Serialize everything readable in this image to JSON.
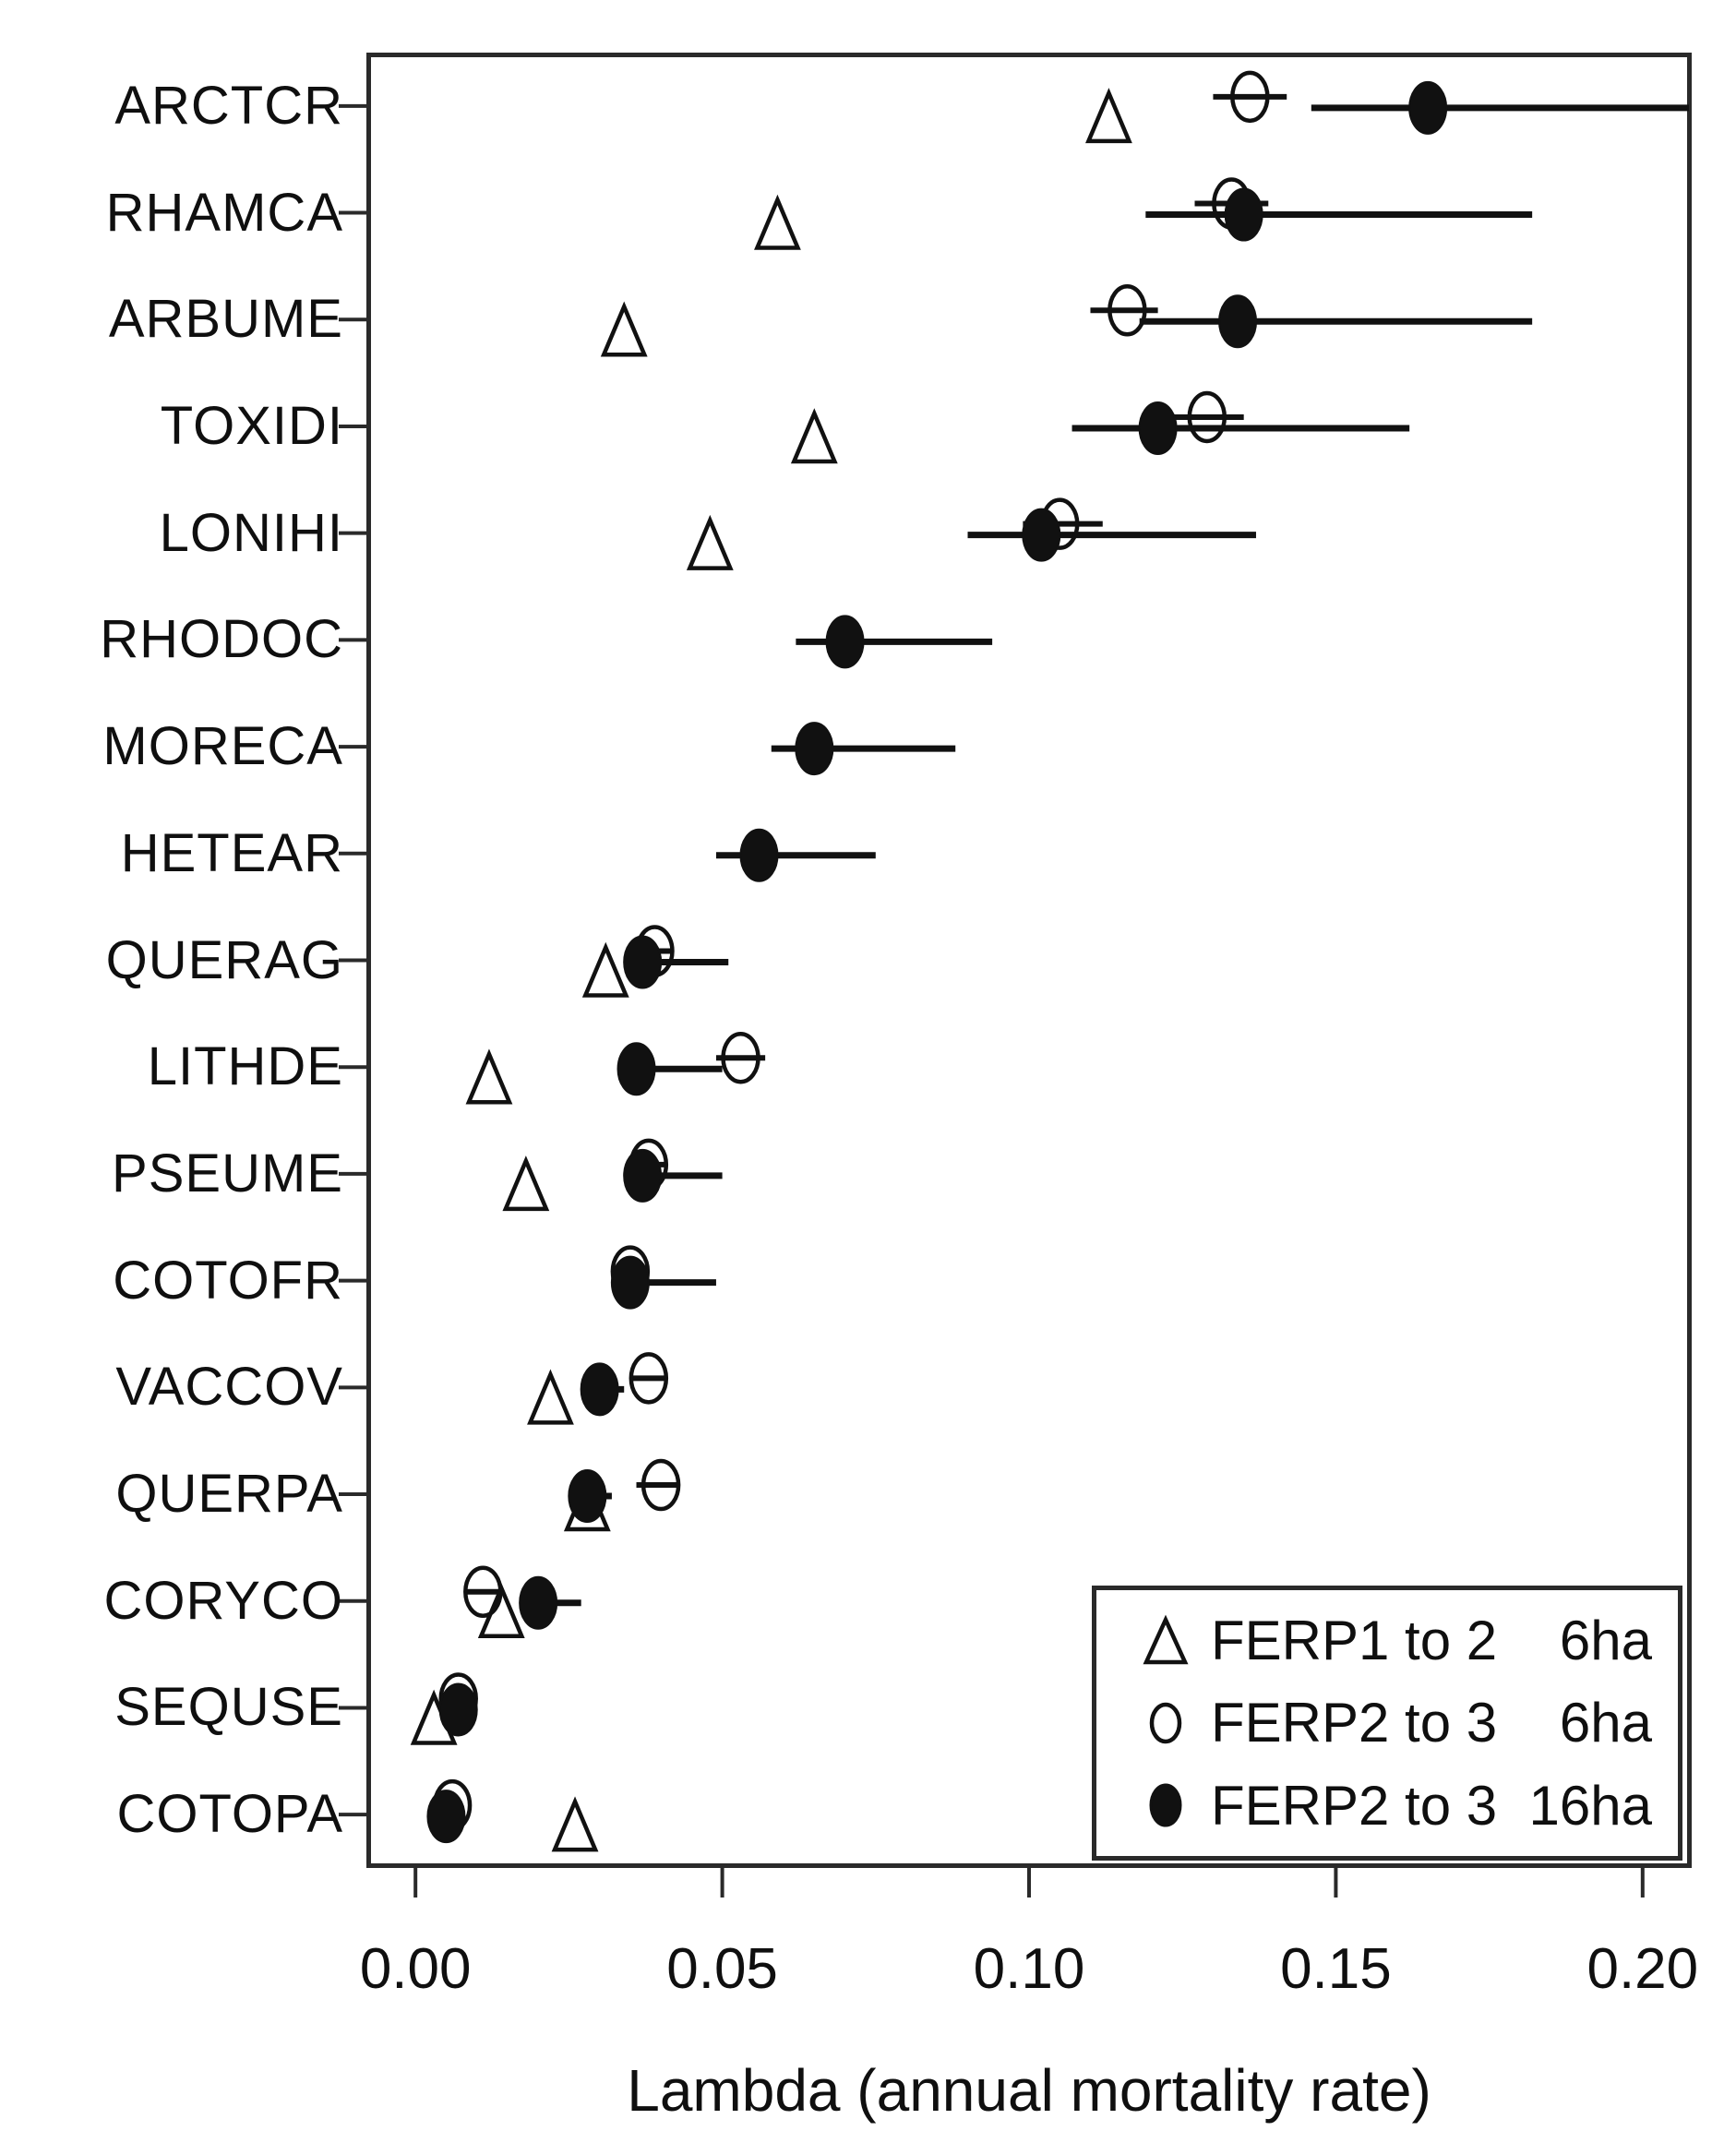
{
  "figure": {
    "background": "#ffffff",
    "ink_color": "#111111"
  },
  "x_axis": {
    "title": "Lambda (annual mortality rate)",
    "tick_labels": [
      "0.00",
      "0.05",
      "0.10",
      "0.15",
      "0.20"
    ]
  },
  "legend": {
    "entries": [
      {
        "symbol": "open-triangle-icon",
        "period": "FERP1 to 2",
        "area": "6ha"
      },
      {
        "symbol": "open-circle-icon",
        "period": "FERP2 to 3",
        "area": "6ha"
      },
      {
        "symbol": "filled-circle-icon",
        "period": "FERP2 to 3",
        "area": "16ha"
      }
    ]
  },
  "chart_data": {
    "type": "scatter",
    "subtype": "dot-plot-with-error-bars",
    "title": "",
    "xlabel": "Lambda (annual mortality rate)",
    "ylabel": "",
    "grid": false,
    "legend_position": "bottom-right",
    "xlim": [
      -0.008,
      0.208
    ],
    "xticks": {
      "values": [
        0,
        0.05,
        0.1,
        0.15,
        0.2
      ],
      "labels": [
        "0.00",
        "0.05",
        "0.10",
        "0.15",
        "0.20"
      ]
    },
    "categories": [
      "ARCTCR",
      "RHAMCA",
      "ARBUME",
      "TOXIDI",
      "LONIHI",
      "RHODOC",
      "MORECA",
      "HETEAR",
      "QUERAG",
      "LITHDE",
      "PSEUME",
      "COTOFR",
      "VACCOV",
      "QUERPA",
      "CORYCO",
      "SEQUSE",
      "COTOPA"
    ],
    "series": [
      {
        "name": "FERP1 to 2  6ha",
        "marker": "open-triangle",
        "values": [
          0.113,
          0.059,
          0.034,
          0.065,
          0.048,
          null,
          null,
          null,
          0.031,
          0.012,
          0.018,
          null,
          0.022,
          0.028,
          0.014,
          0.003,
          0.026
        ],
        "ci_low": [
          null,
          null,
          null,
          null,
          null,
          null,
          null,
          null,
          null,
          null,
          null,
          null,
          null,
          null,
          null,
          null,
          null
        ],
        "ci_high": [
          null,
          null,
          null,
          null,
          null,
          null,
          null,
          null,
          null,
          null,
          null,
          null,
          null,
          null,
          null,
          null,
          null
        ]
      },
      {
        "name": "FERP2 to 3  6ha",
        "marker": "open-circle",
        "values": [
          0.136,
          0.133,
          0.116,
          0.129,
          0.105,
          null,
          null,
          null,
          0.039,
          0.053,
          0.038,
          0.035,
          0.038,
          0.04,
          0.011,
          0.007,
          0.006
        ],
        "ci_low": [
          0.13,
          0.127,
          0.11,
          0.123,
          0.099,
          null,
          null,
          null,
          0.036,
          0.049,
          0.035,
          0.033,
          0.035,
          0.036,
          0.008,
          null,
          null
        ],
        "ci_high": [
          0.142,
          0.139,
          0.121,
          0.135,
          0.112,
          null,
          null,
          null,
          0.042,
          0.057,
          0.041,
          0.038,
          0.041,
          0.043,
          0.014,
          null,
          null
        ]
      },
      {
        "name": "FERP2 to 3 16ha",
        "marker": "filled-circle",
        "values": [
          0.165,
          0.135,
          0.134,
          0.121,
          0.102,
          0.07,
          0.065,
          0.056,
          0.037,
          0.036,
          0.037,
          0.035,
          0.03,
          0.028,
          0.02,
          0.007,
          0.005
        ],
        "ci_low": [
          0.146,
          0.119,
          0.118,
          0.107,
          0.09,
          0.062,
          0.058,
          0.049,
          0.034,
          0.033,
          0.034,
          0.033,
          0.027,
          0.025,
          0.017,
          null,
          null
        ],
        "ci_high": [
          0.208,
          0.182,
          0.182,
          0.162,
          0.137,
          0.094,
          0.088,
          0.075,
          0.051,
          0.05,
          0.05,
          0.049,
          0.034,
          0.032,
          0.027,
          null,
          null
        ]
      }
    ]
  }
}
